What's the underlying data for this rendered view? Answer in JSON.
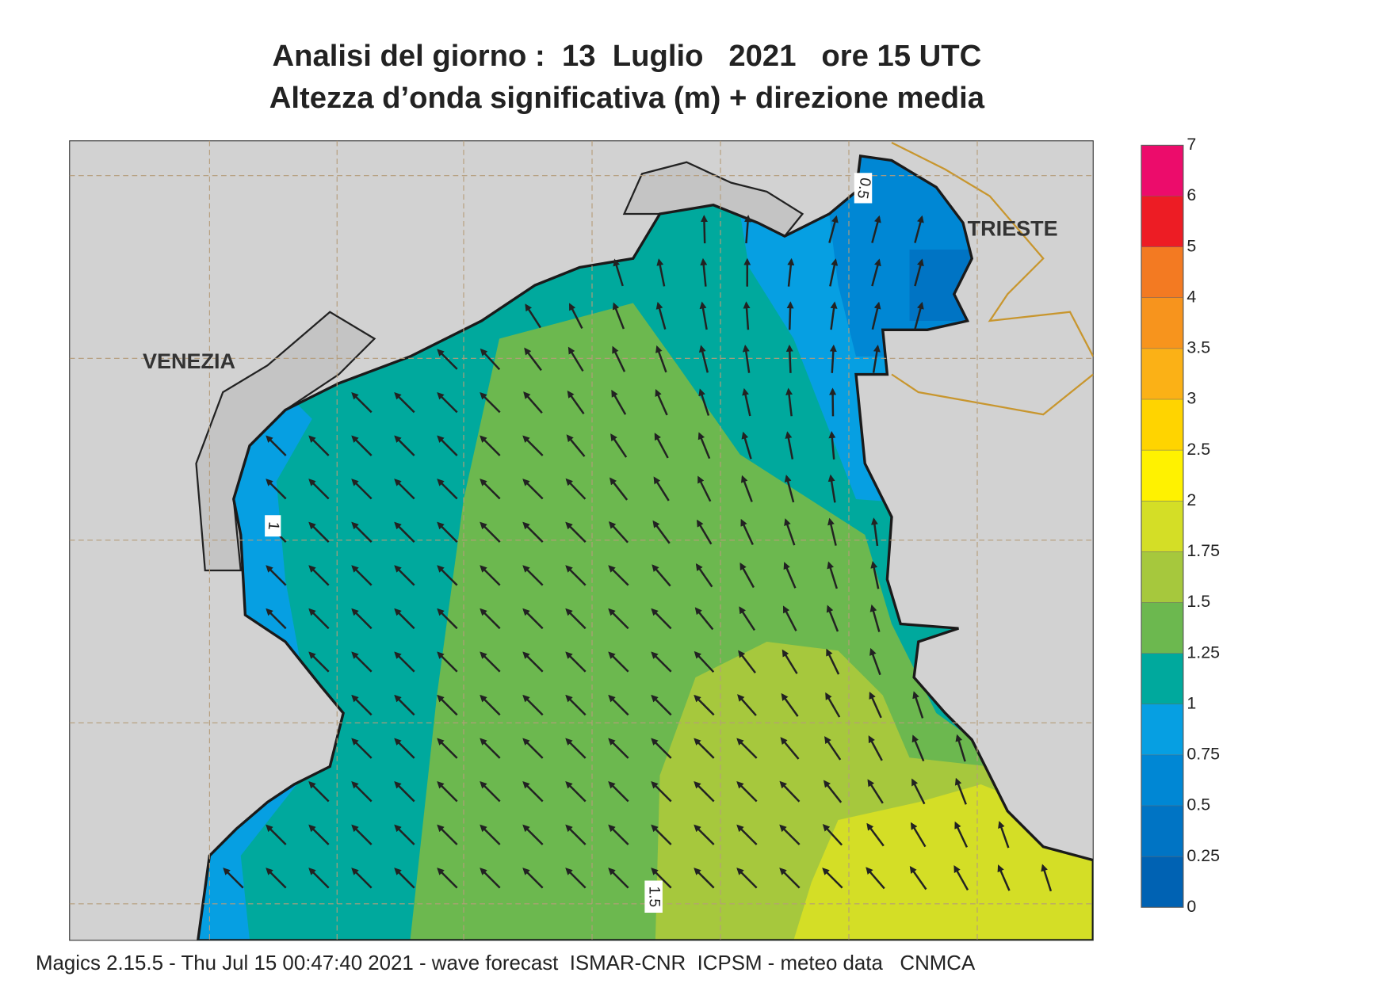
{
  "header": {
    "title": "Analisi del giorno :  13  Luglio   2021   ore 15 UTC",
    "subtitle": "Altezza d’onda significativa (m) + direzione media"
  },
  "map": {
    "place_labels": [
      "VENEZIA",
      "TRIESTE"
    ],
    "contour_labels": [
      "1",
      "1.5",
      "0.5"
    ]
  },
  "colorbar": {
    "ticks": [
      0,
      0.25,
      0.5,
      0.75,
      1,
      1.25,
      1.5,
      1.75,
      2,
      2.5,
      3,
      3.5,
      4,
      5,
      6,
      7
    ],
    "colors": [
      "#0062b3",
      "#0074c4",
      "#0087d4",
      "#069fe2",
      "#00a99d",
      "#6cb84f",
      "#a6c83d",
      "#d4de26",
      "#fff200",
      "#ffd400",
      "#fbb116",
      "#f7941d",
      "#f37a22",
      "#ed1c24",
      "#ec0c6b"
    ]
  },
  "footer": "Magics 2.15.5 - Thu Jul 15 00:47:40 2021 - wave forecast  ISMAR-CNR  ICPSM - meteo data   CNMCA"
}
